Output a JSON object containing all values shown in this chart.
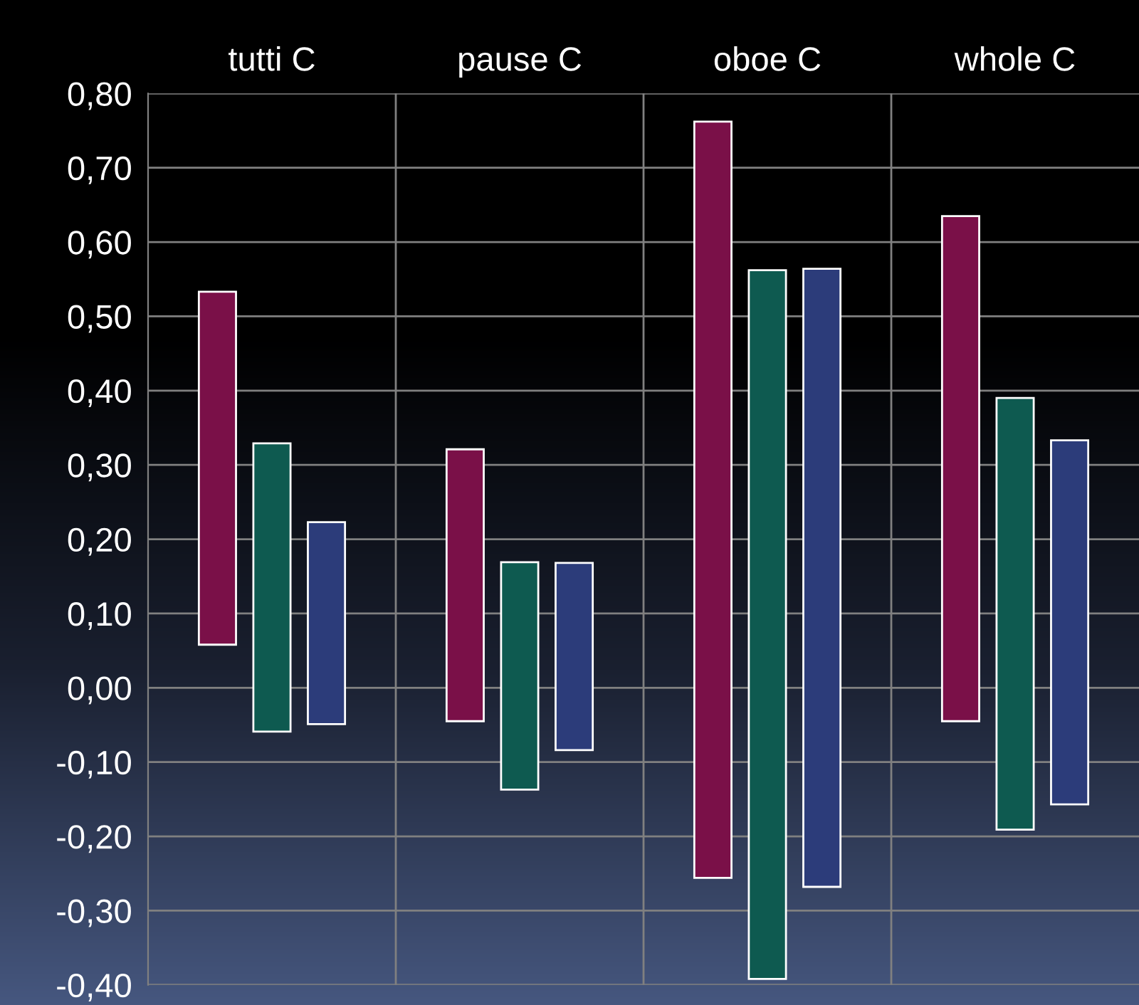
{
  "chart_data": {
    "type": "bar",
    "categories": [
      "tutti C",
      "pause C",
      "oboe C",
      "whole C"
    ],
    "series": [
      {
        "color": "#7a1048",
        "base": [
          0.058,
          -0.045,
          -0.256,
          -0.045
        ],
        "values": [
          0.475,
          0.366,
          1.018,
          0.68
        ]
      },
      {
        "color": "#0e5a50",
        "base": [
          -0.059,
          -0.137,
          -0.392,
          -0.191
        ],
        "values": [
          0.388,
          0.306,
          0.954,
          0.581
        ]
      },
      {
        "color": "#2c3c7a",
        "base": [
          -0.049,
          -0.084,
          -0.268,
          -0.157
        ],
        "values": [
          0.272,
          0.252,
          0.832,
          0.49
        ]
      }
    ],
    "ylim": [
      -0.4,
      0.8
    ],
    "yticks": [
      {
        "value": -0.4,
        "label": "-0,40"
      },
      {
        "value": -0.3,
        "label": "-0,30"
      },
      {
        "value": -0.2,
        "label": "-0,20"
      },
      {
        "value": -0.1,
        "label": "-0,10"
      },
      {
        "value": 0,
        "label": "0,00"
      },
      {
        "value": 0.1,
        "label": "0,10"
      },
      {
        "value": 0.2,
        "label": "0,20"
      },
      {
        "value": 0.3,
        "label": "0,30"
      },
      {
        "value": 0.4,
        "label": "0,40"
      },
      {
        "value": 0.5,
        "label": "0,50"
      },
      {
        "value": 0.6,
        "label": "0,60"
      },
      {
        "value": 0.7,
        "label": "0,70"
      },
      {
        "value": 0.8,
        "label": "0,80"
      }
    ],
    "grid": true,
    "legend": false
  }
}
